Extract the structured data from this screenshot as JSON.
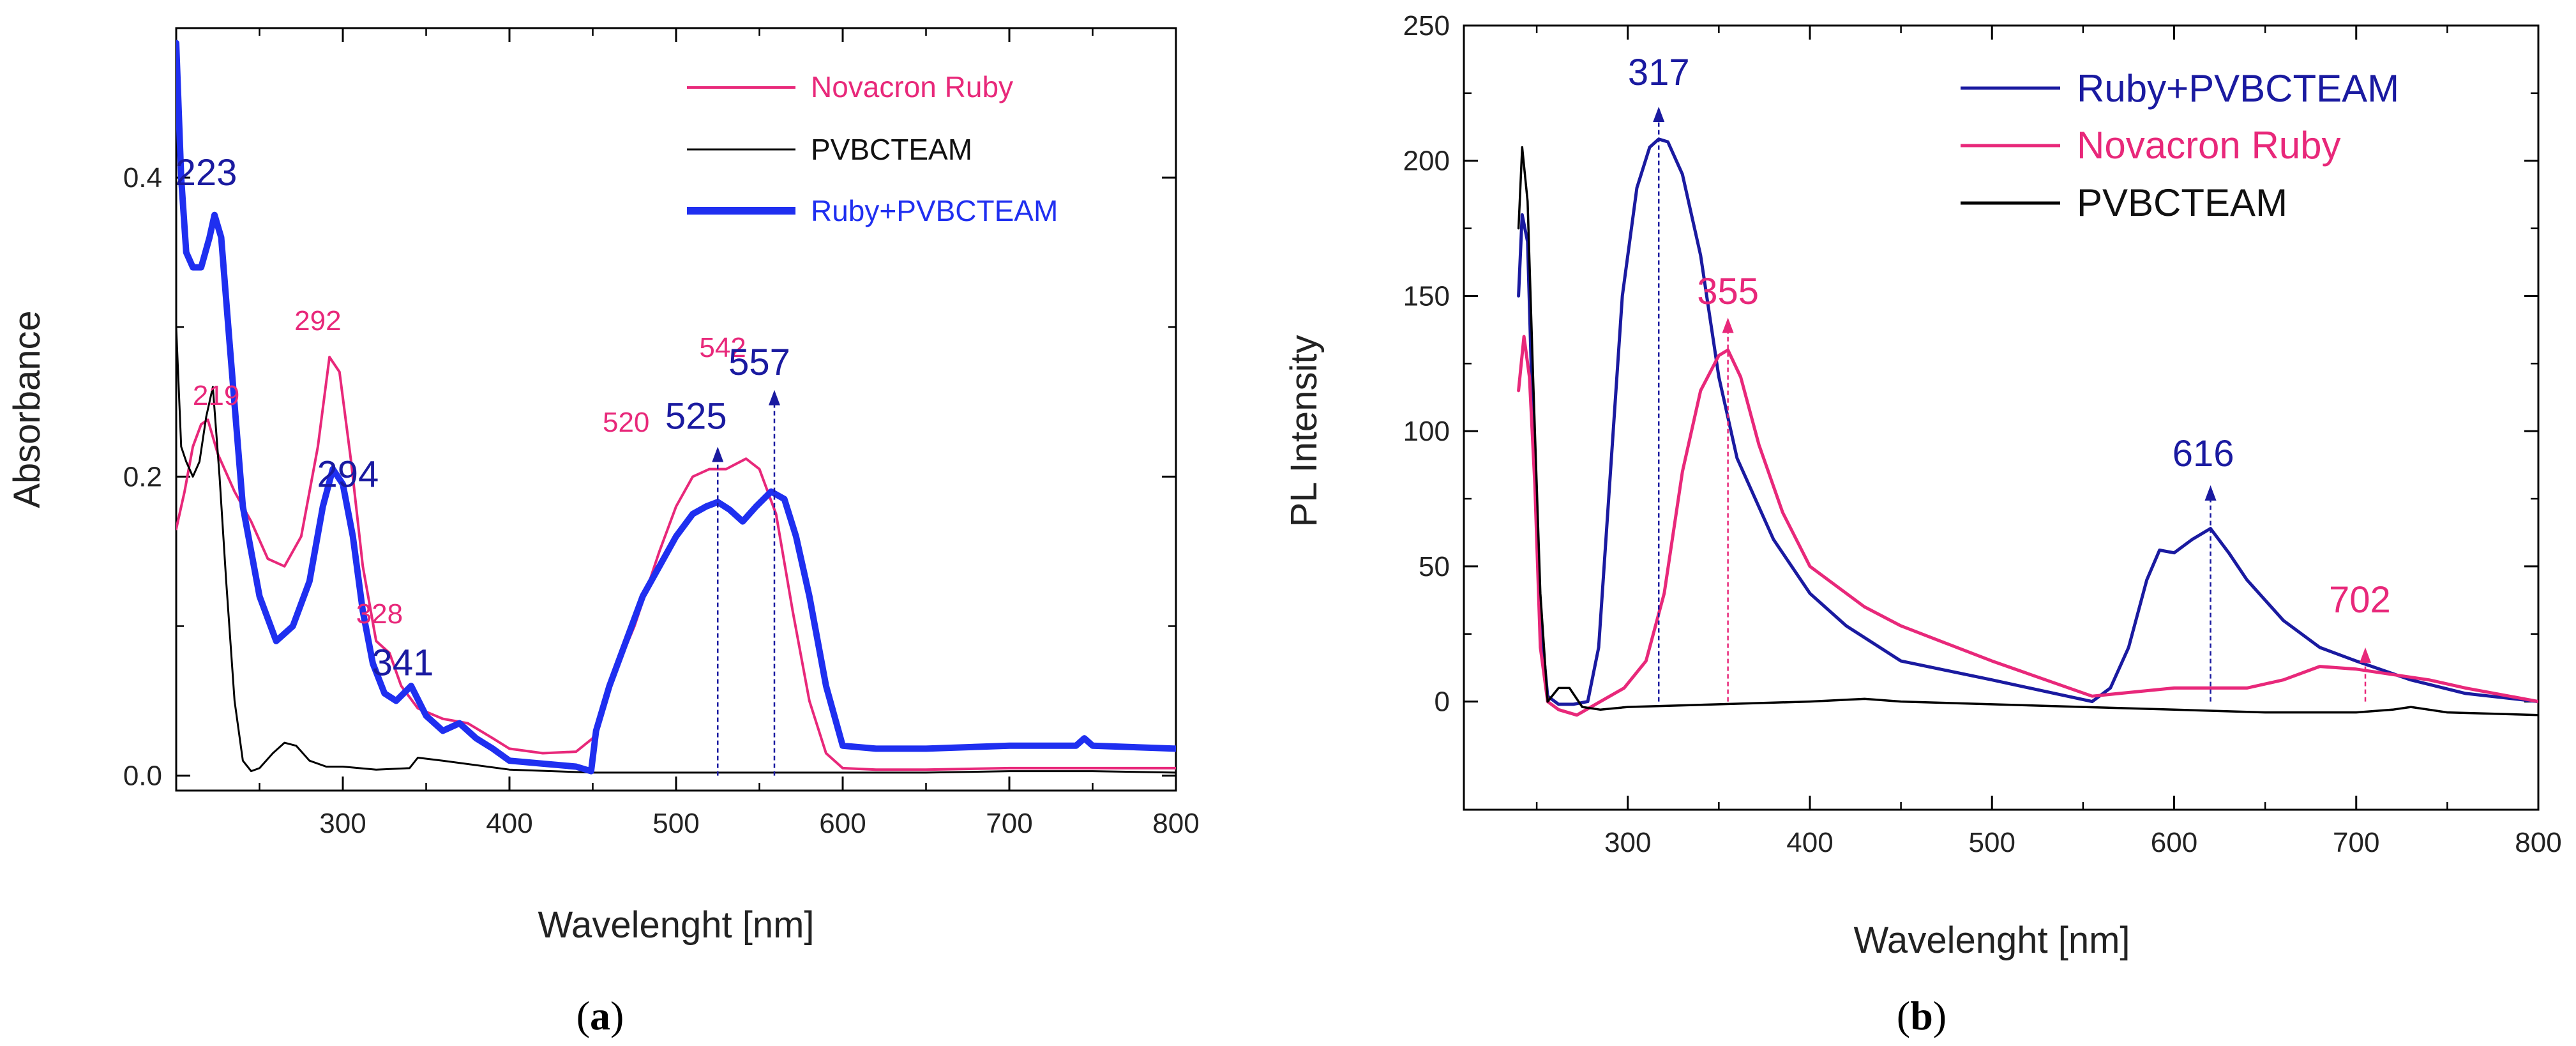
{
  "chart_data": [
    {
      "type": "line",
      "panel_label": "a",
      "xlabel": "Wavelenght [nm]",
      "ylabel": "Absorbance",
      "xlim": [
        200,
        800
      ],
      "ylim": [
        -0.01,
        0.5
      ],
      "xticks": [
        300,
        400,
        500,
        600,
        700,
        800
      ],
      "yticks": [
        0.0,
        0.2,
        0.4
      ],
      "ytick_labels": [
        "0.0",
        "0.2",
        "0.4"
      ],
      "legend_position": "top-right",
      "colors": {
        "Novacron Ruby": "#e8287a",
        "PVBCTEAM": "#000000",
        "Ruby+PVBCTEAM": "#1f2ff0"
      },
      "series": [
        {
          "name": "Novacron Ruby",
          "color": "#e8287a",
          "width": 4,
          "x": [
            200,
            205,
            210,
            215,
            219,
            225,
            235,
            245,
            255,
            265,
            275,
            285,
            292,
            298,
            305,
            312,
            320,
            328,
            335,
            345,
            360,
            375,
            390,
            400,
            420,
            440,
            450,
            460,
            475,
            490,
            500,
            510,
            520,
            530,
            542,
            550,
            560,
            570,
            580,
            590,
            600,
            620,
            650,
            700,
            750,
            800
          ],
          "y": [
            0.165,
            0.19,
            0.22,
            0.235,
            0.238,
            0.215,
            0.19,
            0.17,
            0.145,
            0.14,
            0.16,
            0.22,
            0.28,
            0.27,
            0.21,
            0.14,
            0.09,
            0.082,
            0.06,
            0.045,
            0.038,
            0.035,
            0.025,
            0.018,
            0.015,
            0.016,
            0.025,
            0.06,
            0.1,
            0.15,
            0.18,
            0.2,
            0.205,
            0.205,
            0.212,
            0.205,
            0.175,
            0.11,
            0.05,
            0.015,
            0.005,
            0.004,
            0.004,
            0.005,
            0.005,
            0.005
          ]
        },
        {
          "name": "PVBCTEAM",
          "color": "#000000",
          "width": 3,
          "x": [
            200,
            203,
            206,
            210,
            214,
            218,
            222,
            226,
            230,
            235,
            240,
            245,
            250,
            258,
            265,
            272,
            280,
            290,
            300,
            320,
            340,
            345,
            360,
            400,
            450,
            500,
            550,
            600,
            650,
            700,
            750,
            800
          ],
          "y": [
            0.3,
            0.22,
            0.21,
            0.2,
            0.21,
            0.24,
            0.26,
            0.2,
            0.13,
            0.05,
            0.01,
            0.003,
            0.005,
            0.015,
            0.022,
            0.02,
            0.01,
            0.006,
            0.006,
            0.004,
            0.005,
            0.012,
            0.01,
            0.004,
            0.002,
            0.002,
            0.002,
            0.002,
            0.002,
            0.003,
            0.003,
            0.002
          ]
        },
        {
          "name": "Ruby+PVBCTEAM",
          "color": "#1f2ff0",
          "width": 10,
          "x": [
            200,
            203,
            206,
            210,
            215,
            220,
            223,
            227,
            232,
            240,
            250,
            260,
            270,
            280,
            288,
            294,
            300,
            306,
            312,
            318,
            325,
            332,
            341,
            350,
            360,
            370,
            380,
            390,
            400,
            420,
            440,
            449,
            452,
            460,
            470,
            480,
            490,
            500,
            510,
            518,
            525,
            532,
            540,
            548,
            557,
            565,
            572,
            580,
            590,
            600,
            620,
            650,
            700,
            740,
            745,
            750,
            800
          ],
          "y": [
            0.49,
            0.4,
            0.35,
            0.34,
            0.34,
            0.36,
            0.375,
            0.36,
            0.29,
            0.18,
            0.12,
            0.09,
            0.1,
            0.13,
            0.18,
            0.205,
            0.195,
            0.16,
            0.11,
            0.075,
            0.055,
            0.05,
            0.06,
            0.04,
            0.03,
            0.035,
            0.025,
            0.018,
            0.01,
            0.008,
            0.006,
            0.003,
            0.03,
            0.06,
            0.09,
            0.12,
            0.14,
            0.16,
            0.175,
            0.18,
            0.183,
            0.178,
            0.17,
            0.18,
            0.19,
            0.185,
            0.16,
            0.12,
            0.06,
            0.02,
            0.018,
            0.018,
            0.02,
            0.02,
            0.025,
            0.02,
            0.018
          ]
        }
      ],
      "annotations": [
        {
          "text": "223",
          "x": 218,
          "y": 0.395,
          "color": "#1a1aa0",
          "size": 58
        },
        {
          "text": "219",
          "x": 224,
          "y": 0.248,
          "color": "#e8287a",
          "size": 44
        },
        {
          "text": "292",
          "x": 285,
          "y": 0.298,
          "color": "#e8287a",
          "size": 44
        },
        {
          "text": "294",
          "x": 303,
          "y": 0.193,
          "color": "#1a1aa0",
          "size": 58
        },
        {
          "text": "328",
          "x": 322,
          "y": 0.102,
          "color": "#e8287a",
          "size": 44
        },
        {
          "text": "341",
          "x": 336,
          "y": 0.067,
          "color": "#1a1aa0",
          "size": 58
        },
        {
          "text": "520",
          "x": 470,
          "y": 0.23,
          "color": "#e8287a",
          "size": 44
        },
        {
          "text": "525",
          "x": 512,
          "y": 0.232,
          "color": "#1a1aa0",
          "size": 58
        },
        {
          "text": "542",
          "x": 528,
          "y": 0.28,
          "color": "#e8287a",
          "size": 44
        },
        {
          "text": "557",
          "x": 550,
          "y": 0.268,
          "color": "#1a1aa0",
          "size": 58
        }
      ],
      "arrows": [
        {
          "x": 525,
          "y_from": 0.0,
          "y_to": 0.22,
          "color": "#1a1aa0"
        },
        {
          "x": 559,
          "y_from": 0.0,
          "y_to": 0.258,
          "color": "#1a1aa0"
        }
      ]
    },
    {
      "type": "line",
      "panel_label": "b",
      "xlabel": "Wavelenght [nm]",
      "ylabel": "PL Intensity",
      "xlim": [
        210,
        800
      ],
      "ylim": [
        -40,
        250
      ],
      "xticks": [
        300,
        400,
        500,
        600,
        700,
        800
      ],
      "yticks": [
        0,
        50,
        100,
        150,
        200,
        250
      ],
      "ytick_labels": [
        "0",
        "50",
        "100",
        "150",
        "200",
        "250"
      ],
      "legend_position": "top-right",
      "colors": {
        "Ruby+PVBCTEAM": "#1a1aa0",
        "Novacron Ruby": "#e8287a",
        "PVBCTEAM": "#000000"
      },
      "series": [
        {
          "name": "Ruby+PVBCTEAM",
          "color": "#1a1aa0",
          "width": 5,
          "x": [
            240,
            242,
            245,
            248,
            252,
            256,
            262,
            270,
            278,
            284,
            290,
            297,
            305,
            312,
            317,
            322,
            330,
            340,
            350,
            360,
            380,
            400,
            420,
            450,
            500,
            555,
            565,
            575,
            585,
            592,
            600,
            610,
            620,
            630,
            640,
            660,
            680,
            700,
            730,
            760,
            800
          ],
          "y": [
            150,
            180,
            170,
            100,
            30,
            2,
            -1,
            -1,
            0,
            20,
            80,
            150,
            190,
            205,
            208,
            207,
            195,
            165,
            120,
            90,
            60,
            40,
            28,
            15,
            8,
            0,
            5,
            20,
            45,
            56,
            55,
            60,
            64,
            55,
            45,
            30,
            20,
            15,
            8,
            3,
            0
          ]
        },
        {
          "name": "Novacron Ruby",
          "color": "#e8287a",
          "width": 5,
          "x": [
            240,
            243,
            246,
            249,
            252,
            256,
            262,
            272,
            285,
            298,
            310,
            320,
            330,
            340,
            350,
            355,
            362,
            372,
            385,
            400,
            430,
            450,
            500,
            555,
            570,
            600,
            620,
            640,
            660,
            680,
            700,
            720,
            740,
            760,
            800
          ],
          "y": [
            115,
            135,
            120,
            80,
            20,
            0,
            -3,
            -5,
            0,
            5,
            15,
            40,
            85,
            115,
            128,
            130,
            120,
            95,
            70,
            50,
            35,
            28,
            15,
            2,
            3,
            5,
            5,
            5,
            8,
            13,
            12,
            10,
            8,
            5,
            0
          ]
        },
        {
          "name": "PVBCTEAM",
          "color": "#000000",
          "width": 3.5,
          "x": [
            240,
            242,
            245,
            248,
            252,
            256,
            262,
            268,
            275,
            285,
            300,
            350,
            400,
            430,
            450,
            500,
            550,
            600,
            650,
            700,
            720,
            730,
            750,
            800
          ],
          "y": [
            175,
            205,
            185,
            120,
            40,
            0,
            5,
            5,
            -2,
            -3,
            -2,
            -1,
            0,
            1,
            0,
            -1,
            -2,
            -3,
            -4,
            -4,
            -3,
            -2,
            -4,
            -5
          ]
        }
      ],
      "annotations": [
        {
          "text": "317",
          "x": 317,
          "y": 228,
          "color": "#1a1aa0",
          "size": 58
        },
        {
          "text": "355",
          "x": 355,
          "y": 147,
          "color": "#e8287a",
          "size": 58
        },
        {
          "text": "616",
          "x": 616,
          "y": 87,
          "color": "#1a1aa0",
          "size": 58
        },
        {
          "text": "702",
          "x": 702,
          "y": 33,
          "color": "#e8287a",
          "size": 58
        }
      ],
      "arrows": [
        {
          "x": 317,
          "y_from": 0,
          "y_to": 220,
          "color": "#1a1aa0"
        },
        {
          "x": 355,
          "y_from": 0,
          "y_to": 142,
          "color": "#e8287a"
        },
        {
          "x": 620,
          "y_from": 0,
          "y_to": 80,
          "color": "#1a1aa0"
        },
        {
          "x": 705,
          "y_from": 0,
          "y_to": 20,
          "color": "#e8287a"
        }
      ]
    }
  ]
}
